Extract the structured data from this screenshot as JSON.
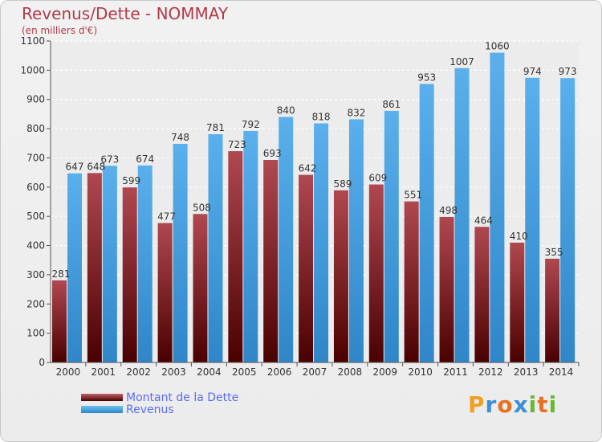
{
  "header": {
    "title": "Revenus/Dette - NOMMAY",
    "subtitle": "(en milliers d'€)"
  },
  "legend": {
    "debt_label": "Montant de la Dette",
    "revenue_label": "Revenus"
  },
  "logo": {
    "text": "Proxiti",
    "letters": [
      "P",
      "r",
      "o",
      "x",
      "i",
      "t",
      "i"
    ],
    "colors": [
      "#f0a020",
      "#3a8fd8",
      "#e87020",
      "#3a8fd8",
      "#6ab830",
      "#e87020",
      "#6ab830"
    ]
  },
  "colors": {
    "debt_top": "#b04850",
    "debt_bottom": "#4a0000",
    "revenue_top": "#5ab0ec",
    "revenue_bottom": "#2f86c8",
    "title": "#b03a48",
    "legend_text": "#5a6cf0"
  },
  "chart_data": {
    "type": "bar",
    "categories": [
      "2000",
      "2001",
      "2002",
      "2003",
      "2004",
      "2005",
      "2006",
      "2007",
      "2008",
      "2009",
      "2010",
      "2011",
      "2012",
      "2013",
      "2014"
    ],
    "series": [
      {
        "name": "Montant de la Dette",
        "values": [
          281,
          648,
          599,
          477,
          508,
          723,
          693,
          642,
          589,
          609,
          551,
          498,
          464,
          410,
          355
        ]
      },
      {
        "name": "Revenus",
        "values": [
          647,
          673,
          674,
          748,
          781,
          792,
          840,
          818,
          832,
          861,
          953,
          1007,
          1060,
          974,
          973
        ]
      }
    ],
    "yticks": [
      0,
      100,
      200,
      300,
      400,
      500,
      600,
      700,
      800,
      900,
      1000,
      1100
    ],
    "ylim": [
      0,
      1100
    ],
    "grid": true,
    "legend_position": "bottom-left"
  }
}
